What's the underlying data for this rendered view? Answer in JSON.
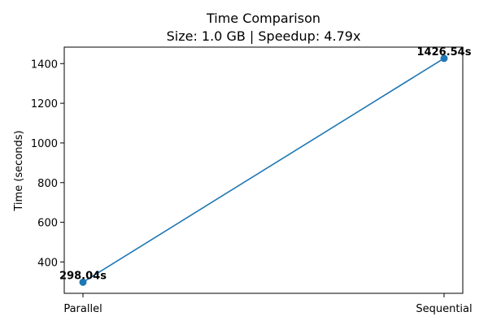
{
  "chart_data": {
    "type": "line",
    "title": "Time Comparison",
    "subtitle": "Size: 1.0 GB | Speedup: 4.79x",
    "xlabel": "",
    "ylabel": "Time (seconds)",
    "categories": [
      "Parallel",
      "Sequential"
    ],
    "series": [
      {
        "values": [
          298.04,
          1426.54
        ],
        "data_labels": [
          "298.04s",
          "1426.54s"
        ],
        "color": "#1f77b4",
        "marker": "circle"
      }
    ],
    "ylim": [
      242,
      1483
    ],
    "yticks": [
      400,
      600,
      800,
      1000,
      1200,
      1400
    ],
    "grid": false,
    "legend": "none"
  }
}
